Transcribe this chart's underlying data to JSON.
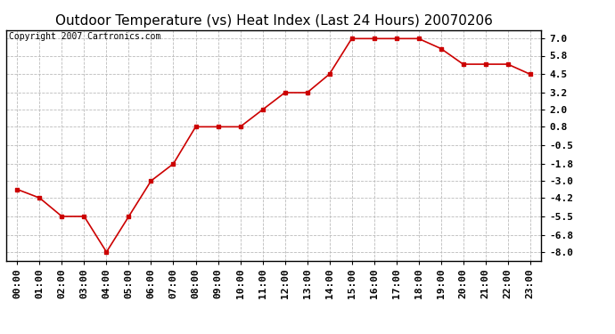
{
  "title": "Outdoor Temperature (vs) Heat Index (Last 24 Hours) 20070206",
  "copyright_text": "Copyright 2007 Cartronics.com",
  "x_labels": [
    "00:00",
    "01:00",
    "02:00",
    "03:00",
    "04:00",
    "05:00",
    "06:00",
    "07:00",
    "08:00",
    "09:00",
    "10:00",
    "11:00",
    "12:00",
    "13:00",
    "14:00",
    "15:00",
    "16:00",
    "17:00",
    "18:00",
    "19:00",
    "20:00",
    "21:00",
    "22:00",
    "23:00"
  ],
  "y_values": [
    -3.6,
    -4.2,
    -5.5,
    -5.5,
    -8.0,
    -5.5,
    -3.0,
    -1.8,
    0.8,
    0.8,
    0.8,
    2.0,
    3.2,
    3.2,
    4.5,
    7.0,
    7.0,
    7.0,
    7.0,
    6.3,
    5.2,
    5.2,
    5.2,
    4.5
  ],
  "y_ticks": [
    7.0,
    5.8,
    4.5,
    3.2,
    2.0,
    0.8,
    -0.5,
    -1.8,
    -3.0,
    -4.2,
    -5.5,
    -6.8,
    -8.0
  ],
  "ylim": [
    -8.6,
    7.6
  ],
  "line_color": "#cc0000",
  "marker": "s",
  "marker_size": 3,
  "background_color": "#ffffff",
  "plot_bg_color": "#ffffff",
  "grid_color": "#bbbbbb",
  "title_fontsize": 11,
  "tick_fontsize": 8,
  "copyright_fontsize": 7
}
